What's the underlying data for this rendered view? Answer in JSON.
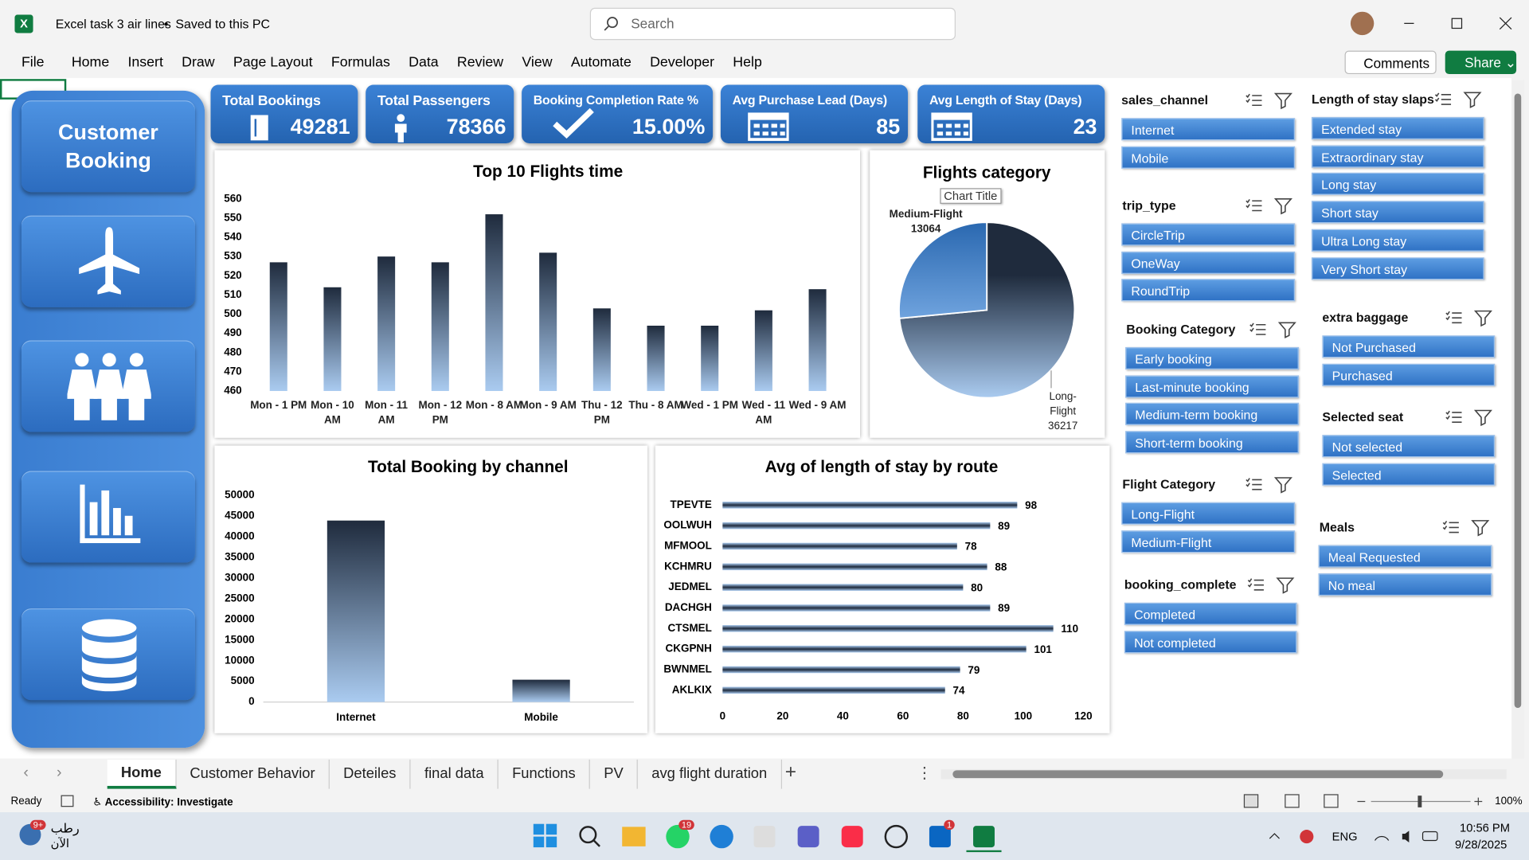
{
  "window": {
    "file_name": "Excel task 3 air lines",
    "separator": "•",
    "save_status": "Saved to this PC",
    "search": "Search",
    "comments": "Comments",
    "share": "Share"
  },
  "menu": [
    "File",
    "Home",
    "Insert",
    "Draw",
    "Page Layout",
    "Formulas",
    "Data",
    "Review",
    "View",
    "Automate",
    "Developer",
    "Help"
  ],
  "sidebar": {
    "title": "Customer Booking"
  },
  "kpis": [
    {
      "label": "Total Bookings",
      "value": "49281"
    },
    {
      "label": "Total Passengers",
      "value": "78366"
    },
    {
      "label": "Booking Completion Rate %",
      "value": "15.00%"
    },
    {
      "label": "Avg Purchase Lead (Days)",
      "value": "85"
    },
    {
      "label": "Avg Length of Stay (Days)",
      "value": "23"
    }
  ],
  "chart_data": [
    {
      "type": "bar",
      "title": "Top 10 Flights time",
      "categories": [
        "Mon - 1 PM",
        "Mon - 10 AM",
        "Mon - 11 AM",
        "Mon - 12 PM",
        "Mon - 8 AM",
        "Mon - 9 AM",
        "Thu - 12 PM",
        "Thu - 8 AM",
        "Wed - 1 PM",
        "Wed - 11 AM",
        "Wed - 9 AM"
      ],
      "values": [
        527,
        514,
        530,
        527,
        552,
        532,
        503,
        494,
        494,
        502,
        513
      ],
      "ylim": [
        460,
        560
      ],
      "yticks": [
        460,
        470,
        480,
        490,
        500,
        510,
        520,
        530,
        540,
        550,
        560
      ],
      "color": "#1f2b3d"
    },
    {
      "type": "pie",
      "title": "Flights category",
      "tooltip": "Chart Title",
      "categories": [
        "Long-Flight",
        "Medium-Flight"
      ],
      "values": [
        36217,
        13064
      ],
      "colors": [
        "#1f2b3d",
        "#2f6db5"
      ]
    },
    {
      "type": "bar",
      "title": "Total Booking by channel",
      "categories": [
        "Internet",
        "Mobile"
      ],
      "values": [
        43900,
        5400
      ],
      "ylim": [
        0,
        50000
      ],
      "yticks": [
        0,
        5000,
        10000,
        15000,
        20000,
        25000,
        30000,
        35000,
        40000,
        45000,
        50000
      ],
      "color": "#1f2b3d"
    },
    {
      "type": "barh",
      "title": "Avg of length of stay by route",
      "categories": [
        "TPEVTE",
        "OOLWUH",
        "MFMOOL",
        "KCHMRU",
        "JEDMEL",
        "DACHGH",
        "CTSMEL",
        "CKGPNH",
        "BWNMEL",
        "AKLKIX"
      ],
      "values": [
        98,
        89,
        78,
        88,
        80,
        89,
        110,
        101,
        79,
        74
      ],
      "xlim": [
        0,
        120
      ],
      "xticks": [
        0,
        20,
        40,
        60,
        80,
        100,
        120
      ],
      "color": "#1f2b3d",
      "data_labels": true
    }
  ],
  "slicers": [
    {
      "title": "sales_channel",
      "items": [
        "Internet",
        "Mobile"
      ]
    },
    {
      "title": "trip_type",
      "items": [
        "CircleTrip",
        "OneWay",
        "RoundTrip"
      ]
    },
    {
      "title": "Booking Category",
      "items": [
        "Early booking",
        "Last-minute booking",
        "Medium-term booking",
        "Short-term booking"
      ]
    },
    {
      "title": "Flight Category",
      "items": [
        "Long-Flight",
        "Medium-Flight"
      ]
    },
    {
      "title": "booking_complete",
      "items": [
        "Completed",
        "Not completed"
      ]
    },
    {
      "title": "Length of stay slaps",
      "items": [
        "Extended stay",
        "Extraordinary stay",
        "Long stay",
        "Short stay",
        "Ultra Long stay",
        "Very Short stay"
      ]
    },
    {
      "title": "extra baggage",
      "items": [
        "Not Purchased",
        "Purchased"
      ]
    },
    {
      "title": "Selected seat",
      "items": [
        "Not selected",
        "Selected"
      ]
    },
    {
      "title": "Meals",
      "items": [
        "Meal Requested",
        "No meal"
      ]
    }
  ],
  "sheet_tabs": [
    "Home",
    "Customer Behavior",
    "Deteiles",
    "final data",
    "Functions",
    "PV",
    "avg flight duration"
  ],
  "status_bar": {
    "ready": "Ready",
    "accessibility": "Accessibility: Investigate",
    "zoom": "100%"
  },
  "taskbar": {
    "weather": "رطب",
    "weather_time": "الآن",
    "weather_badge": "9+",
    "whatsapp_badge": "19",
    "linkedin_badge": "1",
    "language": "ENG",
    "time": "10:56 PM",
    "date": "9/28/2025"
  }
}
